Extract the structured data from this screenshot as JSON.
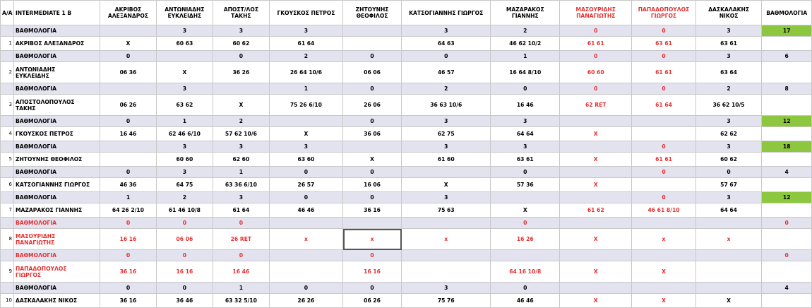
{
  "corner": "A/A",
  "group_title": "INTERMEDIATE 1 B",
  "rating_header": "ΒΑΘΜΟΛΟΓΙΑ",
  "players": [
    {
      "col1": "ΑΚΡΙΒΟΣ",
      "col2": "ΑΛΕΞΑΝΔΡΟΣ",
      "red": false
    },
    {
      "col1": "ΑΝΤΩΝΙΑΔΗΣ",
      "col2": "ΕΥΚΛΕΙΔΗΣ",
      "red": false
    },
    {
      "col1": "ΑΠΟΣΤ/ΛΟΣ",
      "col2": "ΤΑΚΗΣ",
      "red": false
    },
    {
      "col1": "ΓΚΟΥΣΚΟΣ ΠΕΤΡΟΣ",
      "col2": "",
      "red": false
    },
    {
      "col1": "ΖΗΤΟΥΝΗΣ",
      "col2": "ΘΕΟΦΙΛΟΣ",
      "red": false
    },
    {
      "col1": "ΚΑΤΣΟΓΙΑΝΝΗΣ ΓΙΩΡΓΟΣ",
      "col2": "",
      "red": false
    },
    {
      "col1": "ΜΑΖΑΡΑΚΟΣ",
      "col2": "ΓΙΑΝΝΗΣ",
      "red": false
    },
    {
      "col1": "ΜΑΣΟΥΡΙΔΗΣ",
      "col2": "ΠΑΝΑΓΙΩΤΗΣ",
      "red": true
    },
    {
      "col1": "ΠΑΠΑΔΟΠΟΥΛΟΣ",
      "col2": "ΓΙΩΡΓΟΣ",
      "red": true
    },
    {
      "col1": "ΔΑΣΚΑΛΑΚΗΣ",
      "col2": "ΝΙΚΟΣ",
      "red": false
    }
  ],
  "score_label": "ΒΑΘΜΟΛΟΓΙΑ",
  "rows": [
    {
      "num": "",
      "name": "ΒΑΘΜΟΛΟΓΙΑ",
      "score": true,
      "nameRed": false,
      "cells": [
        "",
        "3",
        "3",
        "3",
        "",
        "3",
        "2",
        "0",
        "0",
        "3"
      ],
      "red": [
        false,
        false,
        false,
        false,
        false,
        false,
        false,
        true,
        true,
        false
      ],
      "total": "17",
      "green": true
    },
    {
      "num": "1",
      "name": "ΑΚΡΙΒΟΣ ΑΛΕΞΑΝΔΡΟΣ",
      "score": false,
      "tall": false,
      "nameRed": false,
      "cells": [
        "X",
        "60 63",
        "60 62",
        "61 64",
        "",
        "64 63",
        "46 62 10/2",
        "61 61",
        "63 61",
        "63 61"
      ],
      "red": [
        false,
        false,
        false,
        false,
        false,
        false,
        false,
        true,
        true,
        false
      ],
      "total": "",
      "green": false
    },
    {
      "num": "",
      "name": "ΒΑΘΜΟΛΟΓΙΑ",
      "score": true,
      "nameRed": false,
      "cells": [
        "0",
        "",
        "0",
        "2",
        "0",
        "0",
        "1",
        "0",
        "0",
        "3"
      ],
      "red": [
        false,
        false,
        false,
        false,
        false,
        false,
        false,
        true,
        true,
        false
      ],
      "total": "6",
      "green": false
    },
    {
      "num": "2",
      "name": "ΑΝΤΩΝΙΑΔΗΣ|ΕΥΚΛΕΙΔΗΣ",
      "score": false,
      "tall": true,
      "nameRed": false,
      "cells": [
        "06 36",
        "X",
        "36 26",
        "26 64 10/6",
        "06 06",
        "46 57",
        "16 64 8/10",
        "60 60",
        "61 61",
        "63 64"
      ],
      "red": [
        false,
        false,
        false,
        false,
        false,
        false,
        false,
        true,
        true,
        false
      ],
      "total": "",
      "green": false
    },
    {
      "num": "",
      "name": "ΒΑΘΜΟΛΟΓΙΑ",
      "score": true,
      "nameRed": false,
      "cells": [
        "",
        "3",
        "",
        "1",
        "0",
        "2",
        "0",
        "0",
        "0",
        "2"
      ],
      "red": [
        false,
        false,
        false,
        false,
        false,
        false,
        false,
        true,
        true,
        false
      ],
      "total": "8",
      "green": false
    },
    {
      "num": "3",
      "name": "ΑΠΟΣΤΟΛΟΠΟΥΛΟΣ|ΤΑΚΗΣ",
      "score": false,
      "tall": true,
      "nameRed": false,
      "cells": [
        "06 26",
        "63 62",
        "X",
        "75 26 6/10",
        "26 06",
        "36 63 10/6",
        "16 46",
        "62 RET",
        "61 64",
        "36 62 10/5"
      ],
      "red": [
        false,
        false,
        false,
        false,
        false,
        false,
        false,
        true,
        true,
        false
      ],
      "total": "",
      "green": false
    },
    {
      "num": "",
      "name": "ΒΑΘΜΟΛΟΓΙΑ",
      "score": true,
      "nameRed": false,
      "cells": [
        "0",
        "1",
        "2",
        "",
        "0",
        "3",
        "3",
        "",
        "",
        "3"
      ],
      "red": [
        false,
        false,
        false,
        false,
        false,
        false,
        false,
        false,
        false,
        false
      ],
      "total": "12",
      "green": true
    },
    {
      "num": "4",
      "name": "ΓΚΟΥΣΚΟΣ ΠΕΤΡΟΣ",
      "score": false,
      "tall": false,
      "nameRed": false,
      "cells": [
        "16 46",
        "62 46 6/10",
        "57 62 10/6",
        "X",
        "36 06",
        "62 75",
        "64 64",
        "X",
        "",
        "62 62"
      ],
      "red": [
        false,
        false,
        false,
        false,
        false,
        false,
        false,
        true,
        false,
        false
      ],
      "total": "",
      "green": false
    },
    {
      "num": "",
      "name": "ΒΑΘΜΟΛΟΓΙΑ",
      "score": true,
      "nameRed": false,
      "cells": [
        "",
        "3",
        "3",
        "3",
        "",
        "3",
        "3",
        "",
        "0",
        "3"
      ],
      "red": [
        false,
        false,
        false,
        false,
        false,
        false,
        false,
        false,
        true,
        false
      ],
      "total": "18",
      "green": true
    },
    {
      "num": "5",
      "name": "ΖΗΤΟΥΝΗΣ ΘΕΟΦΙΛΟΣ",
      "score": false,
      "tall": false,
      "nameRed": false,
      "cells": [
        "",
        "60 60",
        "62 60",
        "63 60",
        "X",
        "61 60",
        "63 61",
        "X",
        "61 61",
        "60 62"
      ],
      "red": [
        false,
        false,
        false,
        false,
        false,
        false,
        false,
        true,
        true,
        false
      ],
      "total": "",
      "green": false
    },
    {
      "num": "",
      "name": "ΒΑΘΜΟΛΟΓΙΑ",
      "score": true,
      "nameRed": false,
      "cells": [
        "0",
        "3",
        "1",
        "0",
        "0",
        "",
        "0",
        "",
        "0",
        "0"
      ],
      "red": [
        false,
        false,
        false,
        false,
        false,
        false,
        false,
        false,
        true,
        false
      ],
      "total": "4",
      "green": false
    },
    {
      "num": "6",
      "name": "ΚΑΤΣΟΓΙΑΝΝΗΣ ΓΙΩΡΓΟΣ",
      "score": false,
      "tall": false,
      "nameRed": false,
      "cells": [
        "46 36",
        "64 75",
        "63 36 6/10",
        "26 57",
        "16 06",
        "X",
        "57 36",
        "X",
        "",
        "57 67"
      ],
      "red": [
        false,
        false,
        false,
        false,
        false,
        false,
        false,
        true,
        false,
        false
      ],
      "total": "",
      "green": false
    },
    {
      "num": "",
      "name": "ΒΑΘΜΟΛΟΓΙΑ",
      "score": true,
      "nameRed": false,
      "cells": [
        "1",
        "2",
        "3",
        "0",
        "0",
        "3",
        "",
        "",
        "0",
        "3"
      ],
      "red": [
        false,
        false,
        false,
        false,
        false,
        false,
        false,
        false,
        true,
        false
      ],
      "total": "12",
      "green": true
    },
    {
      "num": "7",
      "name": "ΜΑΖΑΡΑΚΟΣ ΓΙΑΝΝΗΣ",
      "score": false,
      "tall": false,
      "nameRed": false,
      "cells": [
        "64 26 2/10",
        "61 46 10/8",
        "61 64",
        "46 46",
        "36 16",
        "75 63",
        "X",
        "61 62",
        "46 61 8/10",
        "64 64"
      ],
      "red": [
        false,
        false,
        false,
        false,
        false,
        false,
        false,
        true,
        true,
        false
      ],
      "total": "",
      "green": false
    },
    {
      "num": "",
      "name": "ΒΑΘΜΟΛΟΓΙΑ",
      "score": true,
      "nameRed": true,
      "cells": [
        "0",
        "0",
        "0",
        "",
        "",
        "",
        "0",
        "",
        "",
        ""
      ],
      "red": [
        true,
        true,
        true,
        false,
        false,
        false,
        true,
        false,
        false,
        false
      ],
      "total": "0",
      "green": false,
      "totalRed": true
    },
    {
      "num": "8",
      "name": "ΜΑΣΟΥΡΙΔΗΣ|ΠΑΝΑΓΙΩΤΗΣ",
      "score": false,
      "tall": true,
      "nameRed": true,
      "cells": [
        "16 16",
        "06 06",
        "26 RET",
        "x",
        "x",
        "x",
        "16 26",
        "X",
        "x",
        "x"
      ],
      "red": [
        true,
        true,
        true,
        true,
        true,
        true,
        true,
        true,
        true,
        true
      ],
      "total": "",
      "green": false,
      "sel": 4
    },
    {
      "num": "",
      "name": "ΒΑΘΜΟΛΟΓΙΑ",
      "score": true,
      "nameRed": true,
      "cells": [
        "0",
        "0",
        "0",
        "",
        "0",
        "",
        "",
        "",
        "",
        ""
      ],
      "red": [
        true,
        true,
        true,
        false,
        true,
        false,
        false,
        false,
        false,
        false
      ],
      "total": "0",
      "green": false,
      "totalRed": true
    },
    {
      "num": "9",
      "name": "ΠΑΠΑΔΟΠΟΥΛΟΣ|ΓΙΩΡΓΟΣ",
      "score": false,
      "tall": true,
      "nameRed": true,
      "cells": [
        "36 16",
        "16 16",
        "16 46",
        "",
        "16 16",
        "",
        "64 16 10/8",
        "X",
        "X",
        ""
      ],
      "red": [
        true,
        true,
        true,
        false,
        true,
        false,
        true,
        true,
        true,
        false
      ],
      "total": "",
      "green": false
    },
    {
      "num": "",
      "name": "ΒΑΘΜΟΛΟΓΙΑ",
      "score": true,
      "nameRed": false,
      "cells": [
        "0",
        "0",
        "1",
        "0",
        "0",
        "3",
        "0",
        "",
        "",
        ""
      ],
      "red": [
        false,
        false,
        false,
        false,
        false,
        false,
        false,
        false,
        false,
        false
      ],
      "total": "4",
      "green": false
    },
    {
      "num": "10",
      "name": "ΔΑΣΚΑΛΑΚΗΣ ΝΙΚΟΣ",
      "score": false,
      "tall": false,
      "nameRed": false,
      "cells": [
        "36 16",
        "36 46",
        "63 32 5/10",
        "26 26",
        "06 26",
        "75 76",
        "46 46",
        "X",
        "X",
        "X"
      ],
      "red": [
        false,
        false,
        false,
        false,
        false,
        false,
        false,
        true,
        true,
        false
      ],
      "total": "",
      "green": false
    }
  ]
}
